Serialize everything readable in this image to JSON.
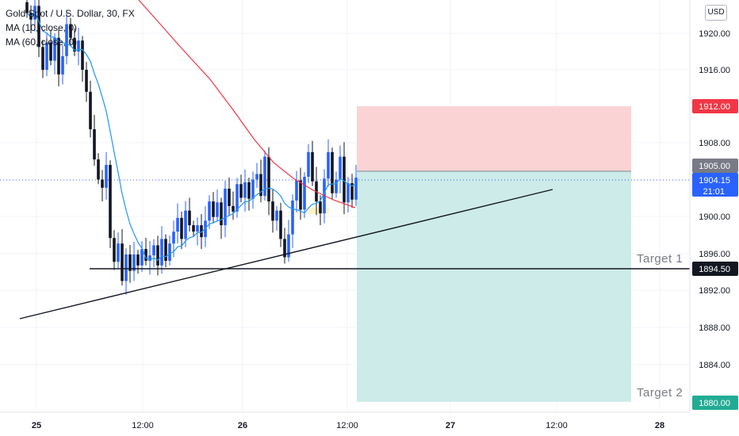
{
  "header": {
    "symbol": "Gold Spot / U.S. Dollar, 30, FX",
    "indicator_1": "MA (10, close, 0)",
    "indicator_2": "MA (60, close, 0)"
  },
  "currency_button": "USD",
  "chart_data": {
    "type": "candlestick",
    "y_ticks": [
      "1920.00",
      "1916.00",
      "1908.00",
      "1900.00",
      "1896.00",
      "1892.00",
      "1888.00",
      "1884.00"
    ],
    "x_ticks": [
      "25",
      "12:00",
      "26",
      "12:00",
      "27",
      "12:00",
      "28"
    ],
    "ylim": [
      1878.5,
      1923.5
    ],
    "price_labels": {
      "stop": "1912.00",
      "entry": "1905.00",
      "last": "1904.15",
      "countdown": "21:01",
      "support": "1894.50",
      "target_2": "1880.00"
    },
    "target_labels": [
      "Target 1",
      "Target 2"
    ],
    "position": {
      "entry": 1905.0,
      "stop": 1912.0,
      "target": 1880.0
    },
    "support_level": 1894.5,
    "colors": {
      "up": "#2962ff",
      "down": "#131722",
      "ma_fast": "#2196f3",
      "ma_slow": "#f23645",
      "stop_zone": "#fad4d4",
      "target_zone": "#cdebe8",
      "last_price": "#2962ff"
    }
  }
}
